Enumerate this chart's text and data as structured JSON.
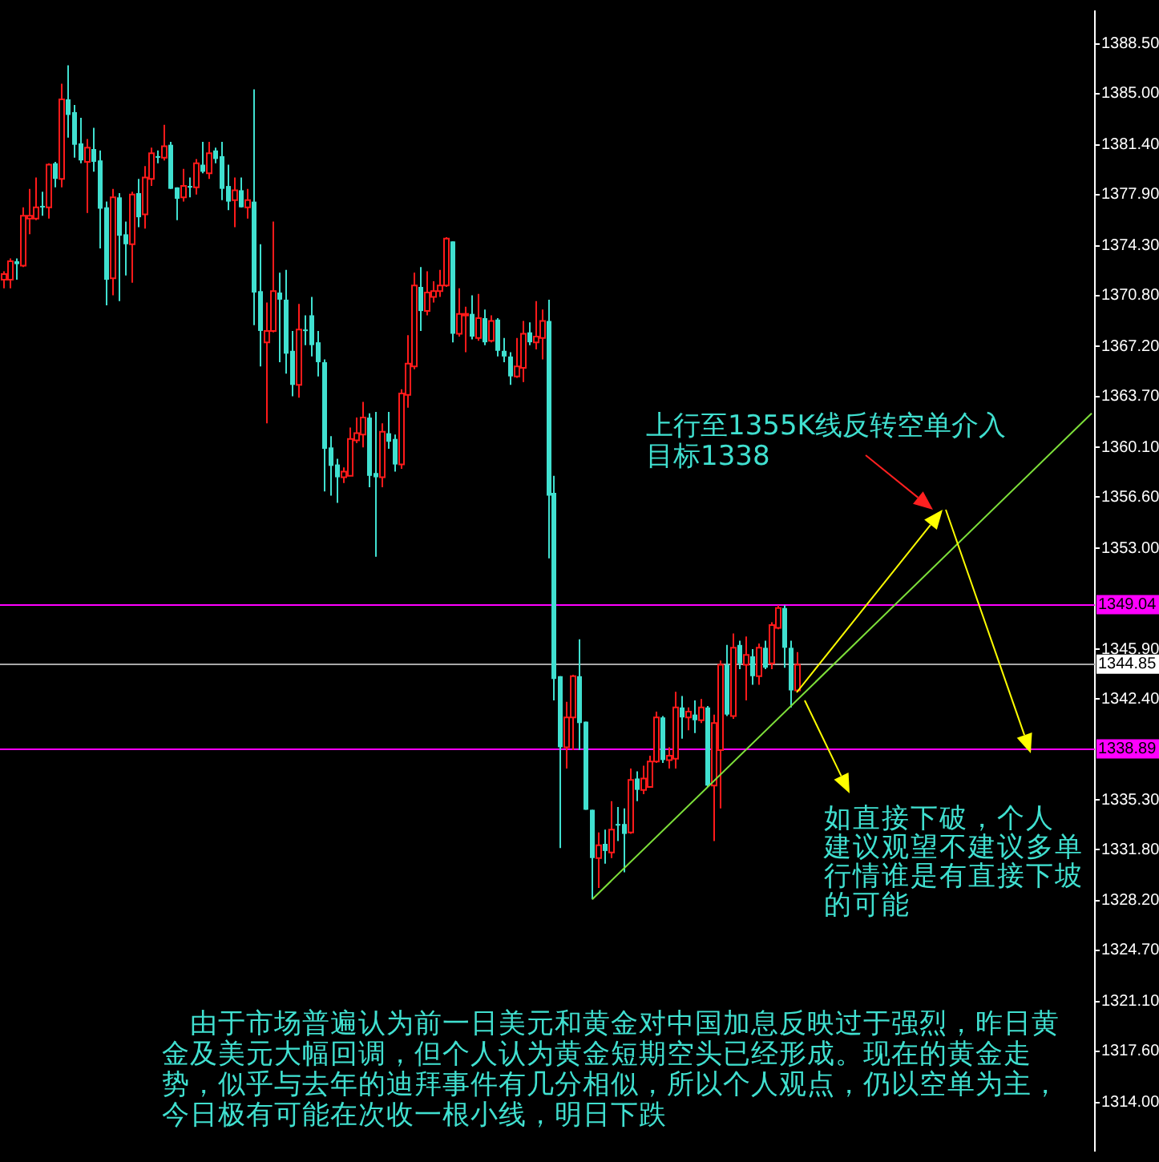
{
  "chart_data": {
    "type": "candlestick",
    "categories": [
      null,
      null,
      null,
      null,
      null,
      null,
      null,
      null,
      null,
      null,
      null,
      null,
      null,
      null,
      null,
      null,
      null,
      null,
      null,
      null,
      null,
      null,
      null,
      null,
      null,
      null,
      null,
      null,
      null,
      null,
      null,
      null,
      null,
      null,
      null,
      null,
      null,
      null,
      null,
      null,
      null,
      null,
      null,
      null,
      null,
      null,
      null,
      null,
      null,
      null,
      null,
      null,
      null,
      null,
      null,
      null,
      null,
      null,
      null,
      null,
      null,
      null,
      null,
      null,
      null,
      null,
      null,
      null,
      null,
      null,
      null,
      null,
      null,
      null,
      null,
      null,
      null,
      null,
      null,
      null,
      null,
      null,
      null,
      null,
      null,
      null,
      null,
      null,
      null,
      null,
      null,
      null,
      null,
      null,
      null,
      null,
      null,
      null,
      null,
      null,
      null,
      null,
      null,
      null,
      null,
      null,
      null,
      null,
      null,
      null,
      null,
      null,
      null,
      null,
      null,
      null,
      null,
      null,
      null,
      null,
      null,
      null,
      null,
      null,
      null,
      null,
      null,
      null,
      null,
      null,
      null,
      null,
      null,
      null,
      null,
      null,
      null,
      null,
      null,
      null,
      null,
      null,
      null,
      null,
      null,
      null,
      null,
      null,
      null,
      null,
      null,
      null,
      null,
      null,
      null,
      null,
      null,
      null,
      null,
      null,
      null,
      null,
      null,
      null,
      null,
      null,
      null,
      null,
      null,
      null,
      null
    ],
    "ohlc": [
      [
        1371.9,
        1372.5,
        1371.3,
        1372.3
      ],
      [
        1371.9,
        1373.4,
        1371.3,
        1373.2
      ],
      [
        1373.2,
        1373.4,
        1371.9,
        1373.0
      ],
      [
        1372.9,
        1377.0,
        1372.8,
        1376.4
      ],
      [
        1376.2,
        1378.3,
        1375.1,
        1376.4
      ],
      [
        1376.2,
        1379.1,
        1376.1,
        1377.0
      ],
      [
        1377.1,
        1378.1,
        1376.4,
        1377.0
      ],
      [
        1377.0,
        1380.1,
        1376.2,
        1380.0
      ],
      [
        1380.1,
        1380.2,
        1378.4,
        1379.0
      ],
      [
        1379.0,
        1385.7,
        1378.4,
        1384.6
      ],
      [
        1384.6,
        1387.0,
        1381.9,
        1383.5
      ],
      [
        1383.7,
        1384.2,
        1380.5,
        1381.4
      ],
      [
        1381.5,
        1383.3,
        1380.1,
        1380.3
      ],
      [
        1380.2,
        1381.8,
        1376.6,
        1381.2
      ],
      [
        1381.1,
        1382.6,
        1379.5,
        1380.2
      ],
      [
        1380.3,
        1381.0,
        1374.1,
        1376.9
      ],
      [
        1377.0,
        1377.4,
        1370.1,
        1371.9
      ],
      [
        1372.0,
        1378.3,
        1370.8,
        1377.7
      ],
      [
        1377.7,
        1378.0,
        1370.4,
        1375.0
      ],
      [
        1375.1,
        1376.0,
        1372.2,
        1374.4
      ],
      [
        1374.4,
        1378.1,
        1371.7,
        1377.9
      ],
      [
        1378.0,
        1379.0,
        1375.6,
        1376.3
      ],
      [
        1376.5,
        1379.9,
        1375.5,
        1379.1
      ],
      [
        1379.0,
        1381.2,
        1378.5,
        1380.8
      ],
      [
        1380.6,
        1381.0,
        1380.1,
        1380.5
      ],
      [
        1380.5,
        1382.8,
        1380.3,
        1381.3
      ],
      [
        1381.4,
        1381.6,
        1378.3,
        1378.3
      ],
      [
        1378.4,
        1378.4,
        1376.1,
        1377.6
      ],
      [
        1377.7,
        1379.7,
        1377.4,
        1378.5
      ],
      [
        1378.5,
        1379.1,
        1377.7,
        1378.4
      ],
      [
        1378.4,
        1380.4,
        1377.9,
        1380.1
      ],
      [
        1380.0,
        1381.6,
        1379.4,
        1379.5
      ],
      [
        1379.4,
        1381.6,
        1379.0,
        1380.8
      ],
      [
        1381.0,
        1381.2,
        1380.1,
        1380.4
      ],
      [
        1380.6,
        1381.6,
        1377.5,
        1378.3
      ],
      [
        1378.5,
        1380.0,
        1376.8,
        1377.4
      ],
      [
        1377.5,
        1379.1,
        1375.6,
        1378.2
      ],
      [
        1378.2,
        1379.1,
        1377.0,
        1377.0
      ],
      [
        1377.0,
        1378.3,
        1376.2,
        1377.5
      ],
      [
        1377.4,
        1385.3,
        1368.7,
        1371.0
      ],
      [
        1371.1,
        1374.4,
        1365.8,
        1368.3
      ],
      [
        1367.5,
        1370.3,
        1361.8,
        1368.3
      ],
      [
        1368.3,
        1376.0,
        1368.2,
        1371.1
      ],
      [
        1371.0,
        1372.4,
        1366.1,
        1370.5
      ],
      [
        1370.5,
        1372.6,
        1365.3,
        1366.7
      ],
      [
        1366.9,
        1368.3,
        1363.7,
        1364.5
      ],
      [
        1364.5,
        1370.2,
        1363.6,
        1368.4
      ],
      [
        1368.4,
        1369.4,
        1367.3,
        1368.3
      ],
      [
        1369.4,
        1370.7,
        1366.5,
        1367.3
      ],
      [
        1367.5,
        1368.3,
        1365.1,
        1366.1
      ],
      [
        1366.1,
        1366.3,
        1357.0,
        1360.0
      ],
      [
        1360.1,
        1360.9,
        1356.7,
        1358.8
      ],
      [
        1358.9,
        1359.3,
        1356.2,
        1358.0
      ],
      [
        1358.0,
        1358.7,
        1357.6,
        1358.4
      ],
      [
        1358.1,
        1361.5,
        1358.1,
        1360.7
      ],
      [
        1360.6,
        1362.2,
        1360.4,
        1361.1
      ],
      [
        1361.0,
        1363.3,
        1360.1,
        1362.2
      ],
      [
        1362.2,
        1362.5,
        1357.3,
        1358.1
      ],
      [
        1358.3,
        1362.6,
        1352.4,
        1358.0
      ],
      [
        1358.0,
        1361.8,
        1357.3,
        1361.2
      ],
      [
        1361.1,
        1362.6,
        1360.0,
        1360.5
      ],
      [
        1360.7,
        1361.0,
        1358.4,
        1358.9
      ],
      [
        1358.9,
        1364.2,
        1358.6,
        1363.9
      ],
      [
        1363.8,
        1368.0,
        1362.9,
        1366.0
      ],
      [
        1365.8,
        1372.4,
        1365.6,
        1371.5
      ],
      [
        1371.4,
        1372.8,
        1368.3,
        1369.7
      ],
      [
        1369.7,
        1372.5,
        1369.4,
        1371.0
      ],
      [
        1370.7,
        1371.8,
        1370.3,
        1371.1
      ],
      [
        1371.1,
        1372.6,
        1370.7,
        1371.5
      ],
      [
        1371.5,
        1374.9,
        1371.4,
        1374.8
      ],
      [
        1374.6,
        1374.6,
        1367.5,
        1368.1
      ],
      [
        1368.1,
        1371.3,
        1367.9,
        1369.5
      ],
      [
        1369.4,
        1370.0,
        1366.8,
        1369.5
      ],
      [
        1369.5,
        1370.8,
        1367.7,
        1367.9
      ],
      [
        1367.8,
        1370.9,
        1367.6,
        1369.2
      ],
      [
        1369.2,
        1369.8,
        1367.3,
        1367.5
      ],
      [
        1367.6,
        1369.4,
        1367.5,
        1369.0
      ],
      [
        1369.1,
        1369.2,
        1366.5,
        1366.9
      ],
      [
        1366.9,
        1367.8,
        1366.1,
        1366.5
      ],
      [
        1366.5,
        1366.8,
        1364.5,
        1365.1
      ],
      [
        1365.1,
        1367.8,
        1365.0,
        1365.8
      ],
      [
        1365.7,
        1369.0,
        1364.7,
        1368.1
      ],
      [
        1368.2,
        1368.9,
        1367.3,
        1367.5
      ],
      [
        1367.5,
        1370.4,
        1367.0,
        1367.9
      ],
      [
        1367.8,
        1369.8,
        1366.3,
        1369.0
      ],
      [
        1369.0,
        1370.5,
        1352.3,
        1356.7
      ],
      [
        1356.9,
        1358.1,
        1342.3,
        1343.8
      ],
      [
        1344.0,
        1344.0,
        1331.9,
        1339.0
      ],
      [
        1339.0,
        1342.2,
        1337.5,
        1341.1
      ],
      [
        1341.1,
        1344.1,
        1338.8,
        1344.0
      ],
      [
        1344.0,
        1346.6,
        1338.8,
        1340.7
      ],
      [
        1340.8,
        1340.8,
        1334.6,
        1334.6
      ],
      [
        1334.6,
        1334.6,
        1328.3,
        1331.2
      ],
      [
        1331.2,
        1333.0,
        1329.1,
        1332.1
      ],
      [
        1332.2,
        1333.2,
        1330.8,
        1331.7
      ],
      [
        1331.6,
        1335.2,
        1331.2,
        1333.2
      ],
      [
        1333.6,
        1334.8,
        1332.4,
        1333.5
      ],
      [
        1333.6,
        1334.7,
        1330.2,
        1332.9
      ],
      [
        1333.0,
        1337.5,
        1332.9,
        1336.7
      ],
      [
        1336.8,
        1337.3,
        1335.2,
        1336.0
      ],
      [
        1336.0,
        1337.7,
        1335.7,
        1336.8
      ],
      [
        1336.2,
        1338.4,
        1336.2,
        1338.0
      ],
      [
        1338.0,
        1341.5,
        1337.9,
        1341.1
      ],
      [
        1341.1,
        1341.2,
        1337.9,
        1338.1
      ],
      [
        1338.1,
        1339.0,
        1337.5,
        1338.4
      ],
      [
        1338.2,
        1342.9,
        1337.5,
        1341.8
      ],
      [
        1341.8,
        1342.6,
        1339.6,
        1341.1
      ],
      [
        1341.1,
        1341.8,
        1340.2,
        1341.5
      ],
      [
        1341.3,
        1342.3,
        1340.0,
        1340.9
      ],
      [
        1340.9,
        1342.4,
        1340.7,
        1341.8
      ],
      [
        1341.8,
        1341.9,
        1336.2,
        1336.3
      ],
      [
        1336.3,
        1341.3,
        1332.4,
        1340.7
      ],
      [
        1338.8,
        1345.1,
        1334.7,
        1344.8
      ],
      [
        1344.8,
        1346.2,
        1341.2,
        1341.3
      ],
      [
        1341.2,
        1347.0,
        1341.0,
        1346.0
      ],
      [
        1346.2,
        1346.5,
        1344.5,
        1344.9
      ],
      [
        1344.8,
        1346.8,
        1342.3,
        1345.5
      ],
      [
        1345.4,
        1345.9,
        1343.4,
        1344.0
      ],
      [
        1344.0,
        1346.3,
        1343.4,
        1346.0
      ],
      [
        1346.0,
        1346.5,
        1344.5,
        1344.6
      ],
      [
        1344.9,
        1347.8,
        1344.5,
        1347.6
      ],
      [
        1347.4,
        1349.0,
        1347.3,
        1348.8
      ],
      [
        1348.8,
        1349.0,
        1344.6,
        1346.0
      ],
      [
        1346.0,
        1346.5,
        1341.8,
        1343.0
      ],
      [
        1343.0,
        1345.7,
        1342.9,
        1344.8
      ],
      null,
      null,
      null,
      null,
      null,
      null,
      null,
      null,
      null,
      null,
      null,
      null,
      null,
      null,
      null,
      null,
      null,
      null,
      null,
      null,
      null,
      null,
      null,
      null,
      null,
      null,
      null,
      null,
      null,
      null,
      null,
      null,
      null,
      null,
      null,
      null,
      null,
      null,
      null,
      null,
      null,
      null,
      null,
      null,
      null,
      null
    ],
    "series": [
      {
        "type": "line",
        "color": "#7ee03a",
        "values": [
          null,
          null,
          null,
          null,
          null,
          null,
          null,
          null,
          null,
          null,
          null,
          null,
          null,
          null,
          null,
          null,
          null,
          null,
          null,
          null,
          null,
          null,
          null,
          null,
          null,
          null,
          null,
          null,
          null,
          null,
          null,
          null,
          null,
          null,
          null,
          null,
          null,
          null,
          null,
          null,
          null,
          null,
          null,
          null,
          null,
          null,
          null,
          null,
          null,
          null,
          null,
          null,
          null,
          null,
          null,
          null,
          null,
          null,
          null,
          null,
          null,
          null,
          null,
          null,
          null,
          null,
          null,
          null,
          null,
          null,
          null,
          null,
          null,
          null,
          null,
          null,
          null,
          null,
          null,
          null,
          null,
          null,
          null,
          null,
          null,
          null,
          null,
          null,
          null,
          null,
          null,
          null,
          1328.3,
          null,
          null,
          null,
          null,
          null,
          null,
          null,
          null,
          null,
          null,
          null,
          null,
          null,
          null,
          null,
          null,
          null,
          null,
          null,
          null,
          null,
          null,
          null,
          null,
          null,
          null,
          null,
          null,
          null,
          null,
          null,
          null,
          null,
          null,
          null,
          null,
          null,
          null,
          null,
          null,
          null,
          null,
          null,
          null,
          null,
          null,
          null,
          null,
          null,
          null,
          null,
          null,
          null,
          null,
          null,
          null,
          null,
          null,
          null,
          null,
          null,
          null,
          null,
          null,
          null,
          null,
          null,
          null,
          null,
          null,
          null,
          null,
          null,
          null,
          null,
          null,
          null,
          1362.5
        ]
      }
    ],
    "ylim": [
      1310.6,
      1390.8
    ],
    "yticks": [
      {
        "value": 1388.5,
        "label": "1388.50"
      },
      {
        "value": 1385,
        "label": "1385.00"
      },
      {
        "value": 1381.4,
        "label": "1381.40"
      },
      {
        "value": 1377.9,
        "label": "1377.90"
      },
      {
        "value": 1374.3,
        "label": "1374.30"
      },
      {
        "value": 1370.8,
        "label": "1370.80"
      },
      {
        "value": 1367.2,
        "label": "1367.20"
      },
      {
        "value": 1363.7,
        "label": "1363.70"
      },
      {
        "value": 1360.1,
        "label": "1360.10"
      },
      {
        "value": 1356.6,
        "label": "1356.60"
      },
      {
        "value": 1353,
        "label": "1353.00"
      },
      {
        "value": 1345.9,
        "label": "1345.90"
      },
      {
        "value": 1342.4,
        "label": "1342.40"
      },
      {
        "value": 1335.3,
        "label": "1335.30"
      },
      {
        "value": 1331.8,
        "label": "1331.80"
      },
      {
        "value": 1328.2,
        "label": "1328.20"
      },
      {
        "value": 1324.7,
        "label": "1324.70"
      },
      {
        "value": 1321.1,
        "label": "1321.10"
      },
      {
        "value": 1317.6,
        "label": "1317.60"
      },
      {
        "value": 1314,
        "label": "1314.00"
      }
    ],
    "tick_labels": "y",
    "ref_lines": [
      {
        "axis": "y",
        "value": 1349.04,
        "label": "1349.04",
        "color": "#ff00ff"
      },
      {
        "axis": "y",
        "value": 1344.85,
        "label": "1344.85",
        "color": "#a8a8a8"
      },
      {
        "axis": "y",
        "value": 1338.89,
        "label": "1338.89",
        "color": "#ff00ff"
      }
    ],
    "annotations": [
      "上行至1355K线反转空单介入",
      "目标1338",
      "如直接下破，个人",
      "建议观望不建议多单",
      "行情谁是有直接下坡",
      "的可能",
      "　由于市场普遍认为前一日美元和黄金对中国加息反映过于强烈，昨日黄金及美元大幅回调，但个人认为黄金短期空头已经形成。现在的黄金走势，似乎与去年的迪拜事件有几分相似，所以个人观点，仍以空单为主，今日极有可能在次收一根小线，明日下跌"
    ],
    "grid": false,
    "legend": false
  }
}
